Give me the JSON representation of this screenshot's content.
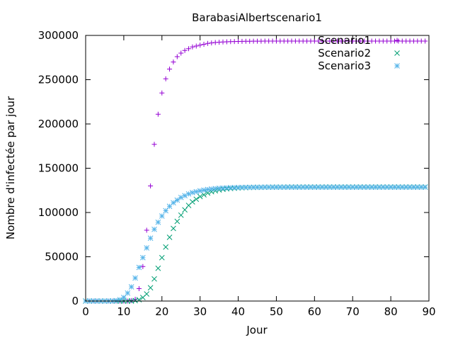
{
  "chart_data": {
    "type": "scatter",
    "title": "BarabasiAlbertscenario1",
    "xlabel": "Jour",
    "ylabel": "Nombre d'infectée par jour",
    "xlim": [
      0,
      90
    ],
    "ylim": [
      0,
      300000
    ],
    "xticks": [
      0,
      10,
      20,
      30,
      40,
      50,
      60,
      70,
      80,
      90
    ],
    "yticks": [
      0,
      50000,
      100000,
      150000,
      200000,
      250000,
      300000
    ],
    "grid": false,
    "legend_position": "top-right",
    "series": [
      {
        "name": "Scenario1",
        "marker": "plus",
        "color": "#9400d3",
        "x": [
          0,
          1,
          2,
          3,
          4,
          5,
          6,
          7,
          8,
          9,
          10,
          11,
          12,
          13,
          14,
          15,
          16,
          17,
          18,
          19,
          20,
          21,
          22,
          23,
          24,
          25,
          26,
          27,
          28,
          29,
          30,
          31,
          32,
          33,
          34,
          35,
          36,
          37,
          38,
          39,
          40,
          41,
          42,
          43,
          44,
          45,
          46,
          47,
          48,
          49,
          50,
          51,
          52,
          53,
          54,
          55,
          56,
          57,
          58,
          59,
          60,
          61,
          62,
          63,
          64,
          65,
          66,
          67,
          68,
          69,
          70,
          71,
          72,
          73,
          74,
          75,
          76,
          77,
          78,
          79,
          80,
          81,
          82,
          83,
          84,
          85,
          86,
          87,
          88,
          89
        ],
        "y": [
          0,
          0,
          0,
          0,
          0,
          0,
          0,
          0,
          0,
          0,
          0,
          0,
          500,
          2000,
          14000,
          39000,
          80000,
          130000,
          177000,
          211000,
          235000,
          251000,
          262000,
          270000,
          276000,
          280000,
          283000,
          285000,
          287000,
          288000,
          289000,
          290000,
          291000,
          291500,
          292000,
          292300,
          292600,
          292800,
          293000,
          293100,
          293200,
          293300,
          293400,
          293400,
          293500,
          293500,
          293500,
          293600,
          293600,
          293600,
          293600,
          293600,
          293600,
          293600,
          293600,
          293600,
          293600,
          293600,
          293600,
          293600,
          293600,
          293600,
          293600,
          293600,
          293600,
          293600,
          293600,
          293600,
          293600,
          293600,
          293600,
          293600,
          293600,
          293600,
          293600,
          293600,
          293600,
          293600,
          293600,
          293600,
          293600,
          293600,
          293600,
          293600,
          293600,
          293600,
          293600,
          293600,
          293600,
          293600
        ]
      },
      {
        "name": "Scenario2",
        "marker": "cross",
        "color": "#009e73",
        "x": [
          0,
          1,
          2,
          3,
          4,
          5,
          6,
          7,
          8,
          9,
          10,
          11,
          12,
          13,
          14,
          15,
          16,
          17,
          18,
          19,
          20,
          21,
          22,
          23,
          24,
          25,
          26,
          27,
          28,
          29,
          30,
          31,
          32,
          33,
          34,
          35,
          36,
          37,
          38,
          39,
          40,
          41,
          42,
          43,
          44,
          45,
          46,
          47,
          48,
          49,
          50,
          51,
          52,
          53,
          54,
          55,
          56,
          57,
          58,
          59,
          60,
          61,
          62,
          63,
          64,
          65,
          66,
          67,
          68,
          69,
          70,
          71,
          72,
          73,
          74,
          75,
          76,
          77,
          78,
          79,
          80,
          81,
          82,
          83,
          84,
          85,
          86,
          87,
          88,
          89
        ],
        "y": [
          0,
          0,
          0,
          0,
          0,
          0,
          0,
          0,
          0,
          0,
          0,
          0,
          0,
          500,
          1500,
          4000,
          8000,
          15000,
          25000,
          37000,
          49000,
          61000,
          72000,
          82000,
          90000,
          97000,
          103000,
          108000,
          112000,
          115000,
          118000,
          120000,
          122000,
          123500,
          124500,
          125500,
          126200,
          126800,
          127200,
          127500,
          127800,
          128000,
          128200,
          128300,
          128400,
          128500,
          128500,
          128600,
          128600,
          128700,
          128700,
          128700,
          128700,
          128800,
          128800,
          128800,
          128800,
          128800,
          128800,
          128800,
          128800,
          128800,
          128800,
          128800,
          128800,
          128800,
          128800,
          128800,
          128800,
          128800,
          128800,
          128800,
          128800,
          128800,
          128800,
          128800,
          128800,
          128800,
          128800,
          128800,
          128800,
          128800,
          128800,
          128800,
          128800,
          128800,
          128800,
          128800,
          128800,
          128800
        ]
      },
      {
        "name": "Scenario3",
        "marker": "star",
        "color": "#56b4e9",
        "x": [
          0,
          1,
          2,
          3,
          4,
          5,
          6,
          7,
          8,
          9,
          10,
          11,
          12,
          13,
          14,
          15,
          16,
          17,
          18,
          19,
          20,
          21,
          22,
          23,
          24,
          25,
          26,
          27,
          28,
          29,
          30,
          31,
          32,
          33,
          34,
          35,
          36,
          37,
          38,
          39,
          40,
          41,
          42,
          43,
          44,
          45,
          46,
          47,
          48,
          49,
          50,
          51,
          52,
          53,
          54,
          55,
          56,
          57,
          58,
          59,
          60,
          61,
          62,
          63,
          64,
          65,
          66,
          67,
          68,
          69,
          70,
          71,
          72,
          73,
          74,
          75,
          76,
          77,
          78,
          79,
          80,
          81,
          82,
          83,
          84,
          85,
          86,
          87,
          88,
          89
        ],
        "y": [
          0,
          0,
          0,
          0,
          0,
          0,
          0,
          0,
          500,
          1500,
          4000,
          9000,
          16000,
          26000,
          38000,
          49000,
          60000,
          71000,
          81000,
          89000,
          96000,
          102000,
          107000,
          111000,
          114000,
          117000,
          119000,
          121000,
          122500,
          123500,
          124500,
          125300,
          126000,
          126500,
          127000,
          127300,
          127600,
          127800,
          128000,
          128100,
          128200,
          128300,
          128400,
          128400,
          128500,
          128500,
          128500,
          128600,
          128600,
          128600,
          128600,
          128600,
          128600,
          128600,
          128600,
          128600,
          128600,
          128600,
          128600,
          128600,
          128600,
          128600,
          128600,
          128600,
          128600,
          128600,
          128600,
          128600,
          128600,
          128600,
          128600,
          128600,
          128600,
          128600,
          128600,
          128600,
          128600,
          128600,
          128600,
          128600,
          128600,
          128600,
          128600,
          128600,
          128600,
          128600,
          128600,
          128600,
          128600,
          128600
        ]
      }
    ]
  }
}
